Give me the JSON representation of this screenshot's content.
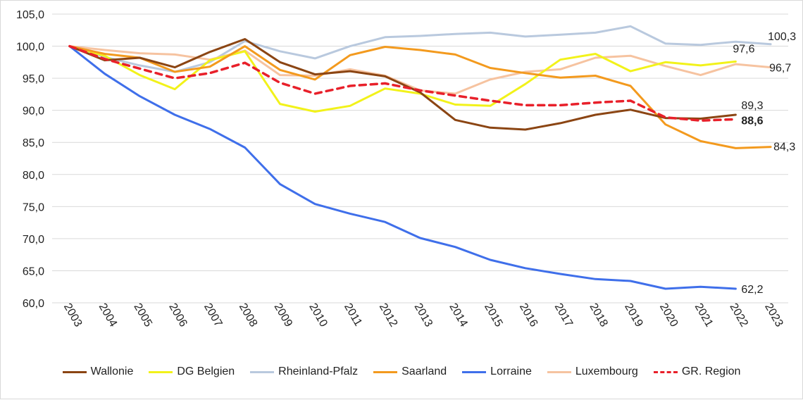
{
  "chart_data": {
    "type": "line",
    "categories": [
      "2003",
      "2004",
      "2005",
      "2006",
      "2007",
      "2008",
      "2009",
      "2010",
      "2011",
      "2012",
      "2013",
      "2014",
      "2015",
      "2016",
      "2017",
      "2018",
      "2019",
      "2020",
      "2021",
      "2022",
      "2023"
    ],
    "ylim": [
      60,
      105
    ],
    "yticks": [
      "60,0",
      "65,0",
      "70,0",
      "75,0",
      "80,0",
      "85,0",
      "90,0",
      "95,0",
      "100,0",
      "105,0"
    ],
    "grid": "horizontal",
    "legend_position": "bottom",
    "series": [
      {
        "name": "Wallonie",
        "color": "#8B4513",
        "dashed": false,
        "values": [
          100,
          97.8,
          98.2,
          96.7,
          99.1,
          101.1,
          97.5,
          95.6,
          96.1,
          95.3,
          92.8,
          88.5,
          87.3,
          87.0,
          88.0,
          89.3,
          90.1,
          88.8,
          88.7,
          89.3,
          null
        ],
        "end_label": "89,3",
        "end_bold": false
      },
      {
        "name": "DG Belgien",
        "color": "#F2F21A",
        "dashed": false,
        "values": [
          100,
          98.5,
          95.5,
          93.3,
          97.8,
          99.2,
          91.0,
          89.8,
          90.7,
          93.4,
          92.6,
          90.9,
          90.7,
          94.1,
          97.9,
          98.8,
          96.1,
          97.5,
          97.0,
          97.6,
          null
        ],
        "end_label": "97,6",
        "end_bold": false
      },
      {
        "name": "Rheinland-Pfalz",
        "color": "#B9C9DE",
        "dashed": false,
        "values": [
          100,
          98.3,
          97.0,
          96.0,
          97.5,
          100.8,
          99.2,
          98.1,
          100.0,
          101.4,
          101.6,
          101.9,
          102.1,
          101.5,
          101.8,
          102.1,
          103.1,
          100.4,
          100.2,
          100.7,
          100.3
        ],
        "end_label": "100,3",
        "end_bold": false
      },
      {
        "name": "Saarland",
        "color": "#F39A1E",
        "dashed": false,
        "values": [
          100,
          98.8,
          98.2,
          96.0,
          96.8,
          100.0,
          96.3,
          94.8,
          98.6,
          99.9,
          99.4,
          98.7,
          96.6,
          95.8,
          95.1,
          95.4,
          93.8,
          87.8,
          85.2,
          84.1,
          84.3
        ],
        "end_label": "84,3",
        "end_bold": false
      },
      {
        "name": "Lorraine",
        "color": "#3F6FEA",
        "dashed": false,
        "values": [
          100,
          95.7,
          92.2,
          89.3,
          87.1,
          84.2,
          78.5,
          75.4,
          73.9,
          72.6,
          70.1,
          68.7,
          66.7,
          65.4,
          64.5,
          63.7,
          63.4,
          62.2,
          62.5,
          62.2,
          null
        ],
        "end_label": "62,2",
        "end_bold": false
      },
      {
        "name": "Luxembourg",
        "color": "#F6C3A0",
        "dashed": false,
        "values": [
          100,
          99.4,
          98.9,
          98.7,
          97.9,
          99.3,
          95.5,
          95.4,
          96.4,
          95.4,
          93.1,
          92.6,
          94.8,
          96.0,
          96.4,
          98.2,
          98.5,
          96.9,
          95.5,
          97.2,
          96.7
        ],
        "end_label": "96,7",
        "end_bold": false
      },
      {
        "name": "GR. Region",
        "color": "#E8202A",
        "dashed": true,
        "values": [
          100,
          98.0,
          96.5,
          95.0,
          95.8,
          97.4,
          94.3,
          92.6,
          93.8,
          94.2,
          93.1,
          92.3,
          91.5,
          90.8,
          90.8,
          91.2,
          91.5,
          88.9,
          88.4,
          88.6,
          null
        ],
        "end_label": "88,6",
        "end_bold": true
      }
    ]
  }
}
